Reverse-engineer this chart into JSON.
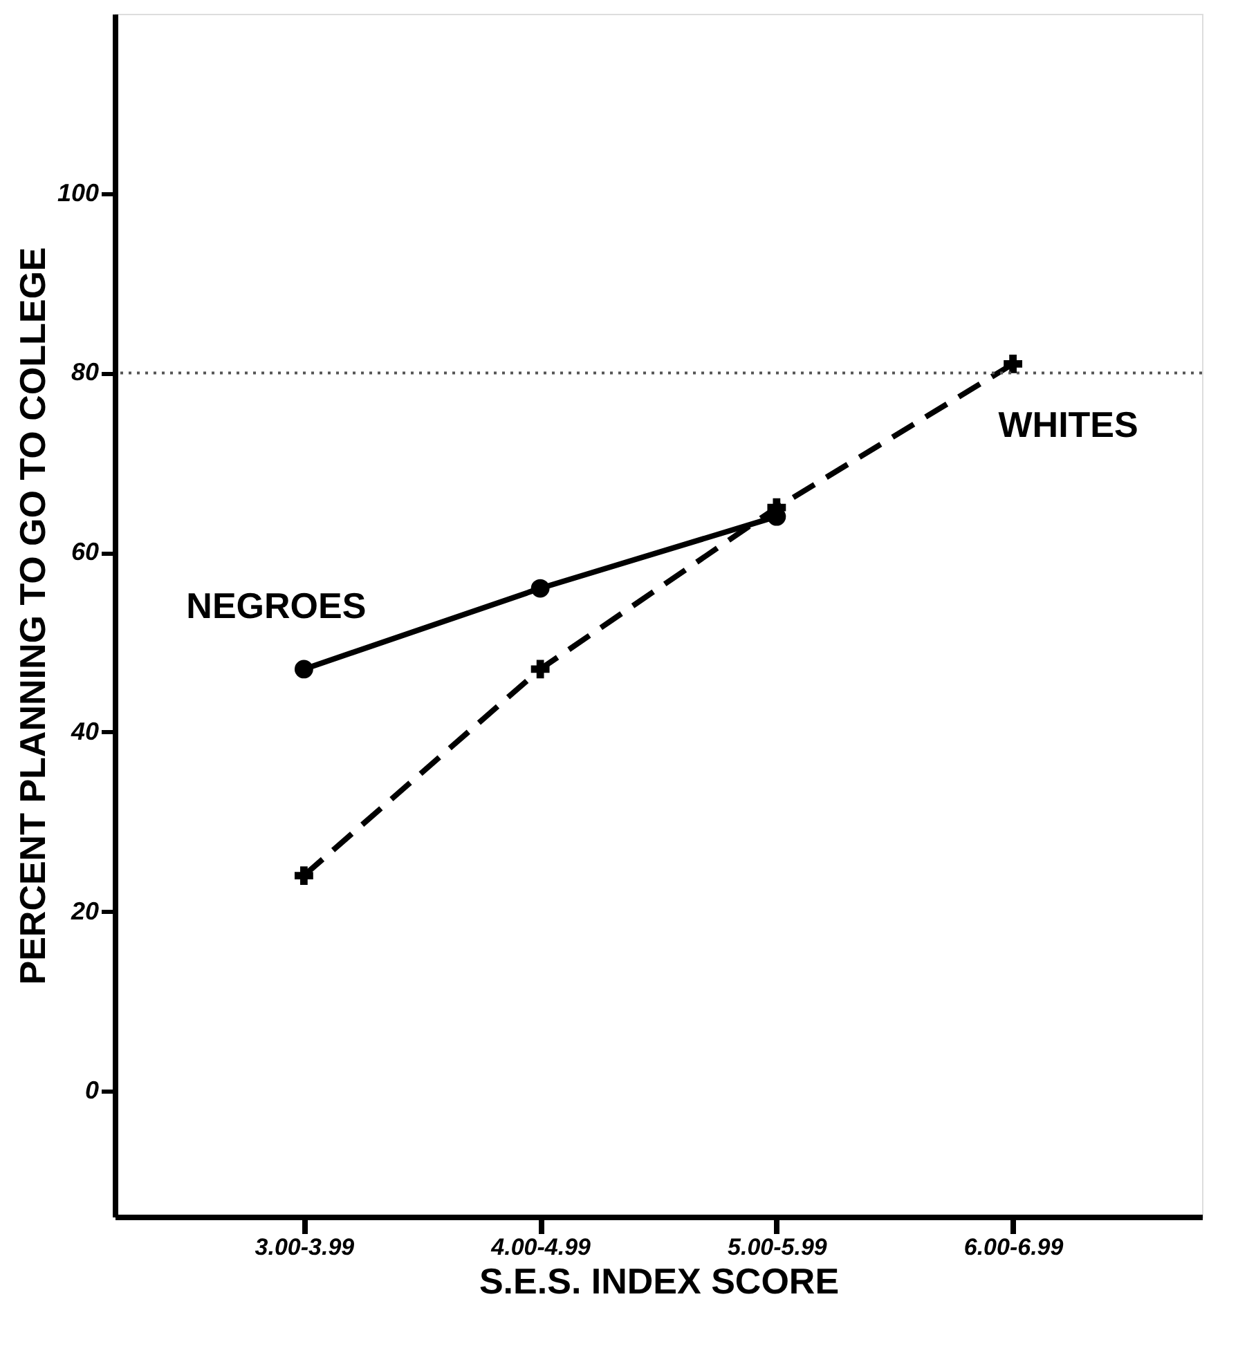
{
  "chart_data": {
    "type": "line",
    "xlabel": "S.E.S. INDEX SCORE",
    "ylabel": "PERCENT PLANNING TO GO TO COLLEGE",
    "categories": [
      "3.00-3.99",
      "4.00-4.99",
      "5.00-5.99",
      "6.00-6.99"
    ],
    "series": [
      {
        "name": "NEGROES",
        "color": "#000000",
        "values": [
          47,
          56,
          64,
          null
        ],
        "marker": "circle",
        "line_style": "solid"
      },
      {
        "name": "WHITES",
        "color": "#000000",
        "values": [
          24,
          47,
          65,
          81
        ],
        "marker": "cross",
        "line_style": "dashed"
      }
    ],
    "ylim": [
      -14,
      120
    ],
    "yticks": [
      0,
      20,
      40,
      60,
      80,
      100
    ],
    "grid": false,
    "legend": false,
    "ref_lines": [
      {
        "axis": "y",
        "value": 80,
        "color": "#555555",
        "line_style": "dotted"
      }
    ]
  }
}
